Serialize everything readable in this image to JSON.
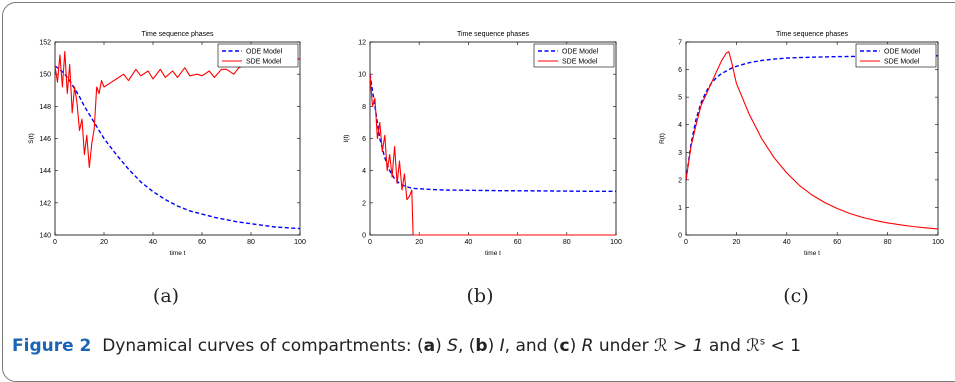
{
  "chart_data": [
    {
      "type": "line",
      "title": "Time sequence phases",
      "xlabel": "time t",
      "ylabel": "S(t)",
      "xlim": [
        0,
        100
      ],
      "ylim": [
        140,
        152
      ],
      "xticks": [
        "0",
        "20",
        "40",
        "60",
        "80",
        "100"
      ],
      "yticks": [
        "140",
        "142",
        "144",
        "146",
        "148",
        "150",
        "152"
      ],
      "legend": "upper-right",
      "series": [
        {
          "name": "ODE Model",
          "style": "dashed",
          "color": "#0000ff",
          "x": [
            0,
            2,
            4,
            6,
            8,
            10,
            12,
            14,
            16,
            18,
            20,
            25,
            30,
            35,
            40,
            45,
            50,
            55,
            60,
            65,
            70,
            75,
            80,
            85,
            90,
            95,
            100
          ],
          "y": [
            150.5,
            150.3,
            150.0,
            149.6,
            149.1,
            148.6,
            148.0,
            147.5,
            147.0,
            146.5,
            146.0,
            145.0,
            144.1,
            143.3,
            142.7,
            142.2,
            141.8,
            141.5,
            141.3,
            141.1,
            140.95,
            140.8,
            140.7,
            140.6,
            140.5,
            140.45,
            140.4
          ]
        },
        {
          "name": "SDE Model",
          "style": "solid",
          "color": "#ff0000",
          "x": [
            0,
            1,
            2,
            3,
            4,
            5,
            6,
            7,
            8,
            9,
            10,
            11,
            12,
            13,
            14,
            15,
            16,
            17,
            18,
            19,
            20,
            22,
            25,
            28,
            30,
            33,
            35,
            38,
            40,
            43,
            45,
            48,
            50,
            53,
            55,
            58,
            60,
            63,
            65,
            68,
            70,
            73,
            75,
            78,
            80,
            83,
            85,
            88,
            90,
            93,
            95,
            97,
            98,
            100
          ],
          "y": [
            150.5,
            149.5,
            151.2,
            149.2,
            151.4,
            148.8,
            150.6,
            147.6,
            149.2,
            148.2,
            146.5,
            147.2,
            145.0,
            146.2,
            144.2,
            145.7,
            146.6,
            149.2,
            148.8,
            149.6,
            149.2,
            149.4,
            149.7,
            150.0,
            149.6,
            150.3,
            149.9,
            150.2,
            149.7,
            150.3,
            149.8,
            150.2,
            149.8,
            150.4,
            149.9,
            150.0,
            149.9,
            150.2,
            149.8,
            150.3,
            150.3,
            150.0,
            150.4,
            150.6,
            150.8,
            150.5,
            150.9,
            150.7,
            151.0,
            150.6,
            150.9,
            150.6,
            151.1,
            150.9
          ]
        }
      ]
    },
    {
      "type": "line",
      "title": "Time sequence phases",
      "xlabel": "time t",
      "ylabel": "I(t)",
      "xlim": [
        0,
        100
      ],
      "ylim": [
        0,
        12
      ],
      "xticks": [
        "0",
        "20",
        "40",
        "60",
        "80",
        "100"
      ],
      "yticks": [
        "0",
        "2",
        "4",
        "6",
        "8",
        "10",
        "12"
      ],
      "legend": "upper-right",
      "series": [
        {
          "name": "ODE Model",
          "style": "dashed",
          "color": "#0000ff",
          "x": [
            0,
            2,
            4,
            6,
            8,
            10,
            12,
            14,
            16,
            18,
            20,
            25,
            30,
            40,
            50,
            60,
            70,
            80,
            90,
            100
          ],
          "y": [
            10.0,
            8.0,
            6.0,
            4.8,
            4.0,
            3.5,
            3.2,
            3.05,
            2.95,
            2.9,
            2.87,
            2.83,
            2.8,
            2.78,
            2.76,
            2.75,
            2.74,
            2.73,
            2.72,
            2.72
          ]
        },
        {
          "name": "SDE Model",
          "style": "solid",
          "color": "#ff0000",
          "x": [
            0,
            1,
            2,
            3,
            4,
            5,
            6,
            7,
            8,
            9,
            10,
            11,
            12,
            13,
            14,
            15,
            16,
            17,
            17.5,
            20,
            40,
            60,
            80,
            100
          ],
          "y": [
            10.0,
            8.0,
            8.5,
            6.0,
            7.0,
            5.2,
            6.2,
            4.0,
            5.0,
            3.6,
            5.5,
            3.2,
            4.6,
            2.8,
            3.8,
            2.2,
            2.4,
            2.8,
            0,
            0,
            0,
            0,
            0,
            0
          ]
        }
      ]
    },
    {
      "type": "line",
      "title": "Time sequence phases",
      "xlabel": "time t",
      "ylabel": "R(t)",
      "xlim": [
        0,
        100
      ],
      "ylim": [
        0,
        7
      ],
      "xticks": [
        "0",
        "20",
        "40",
        "60",
        "80",
        "100"
      ],
      "yticks": [
        "0",
        "1",
        "2",
        "3",
        "4",
        "5",
        "6",
        "7"
      ],
      "legend": "upper-right",
      "series": [
        {
          "name": "ODE Model",
          "style": "dashed",
          "color": "#0000ff",
          "x": [
            0,
            2,
            4,
            6,
            8,
            10,
            12,
            14,
            16,
            18,
            20,
            25,
            30,
            35,
            40,
            50,
            60,
            70,
            80,
            90,
            100
          ],
          "y": [
            2.0,
            3.3,
            4.2,
            4.8,
            5.2,
            5.5,
            5.7,
            5.85,
            5.95,
            6.05,
            6.12,
            6.25,
            6.33,
            6.38,
            6.42,
            6.45,
            6.47,
            6.48,
            6.49,
            6.49,
            6.5
          ]
        },
        {
          "name": "SDE Model",
          "style": "solid",
          "color": "#ff0000",
          "x": [
            0,
            2,
            4,
            6,
            8,
            10,
            12,
            14,
            16,
            17,
            18,
            20,
            25,
            30,
            35,
            40,
            45,
            50,
            55,
            60,
            65,
            70,
            75,
            80,
            85,
            90,
            95,
            100
          ],
          "y": [
            2.0,
            3.2,
            4.0,
            4.7,
            5.1,
            5.5,
            5.9,
            6.3,
            6.6,
            6.65,
            6.3,
            5.5,
            4.4,
            3.5,
            2.8,
            2.25,
            1.8,
            1.45,
            1.18,
            0.96,
            0.78,
            0.64,
            0.53,
            0.44,
            0.37,
            0.31,
            0.26,
            0.22
          ]
        }
      ]
    }
  ],
  "panel_labels": [
    "(a)",
    "(b)",
    "(c)"
  ],
  "caption": {
    "figure_label": "Figure 2",
    "text_1": "Dynamical curves of compartments: (",
    "a": "a",
    "text_2": ") ",
    "s": "S",
    "text_3": ", (",
    "b": "b",
    "text_4": ") ",
    "i": "I",
    "text_5": ", and (",
    "c": "c",
    "text_6": ") ",
    "r": "R",
    "text_7": " under ",
    "cond_1": "ℛ > 1",
    "text_8": " and ",
    "cond_2_sym": "ℛ",
    "cond_2_sup": "s",
    "cond_2_rest": " < 1"
  }
}
